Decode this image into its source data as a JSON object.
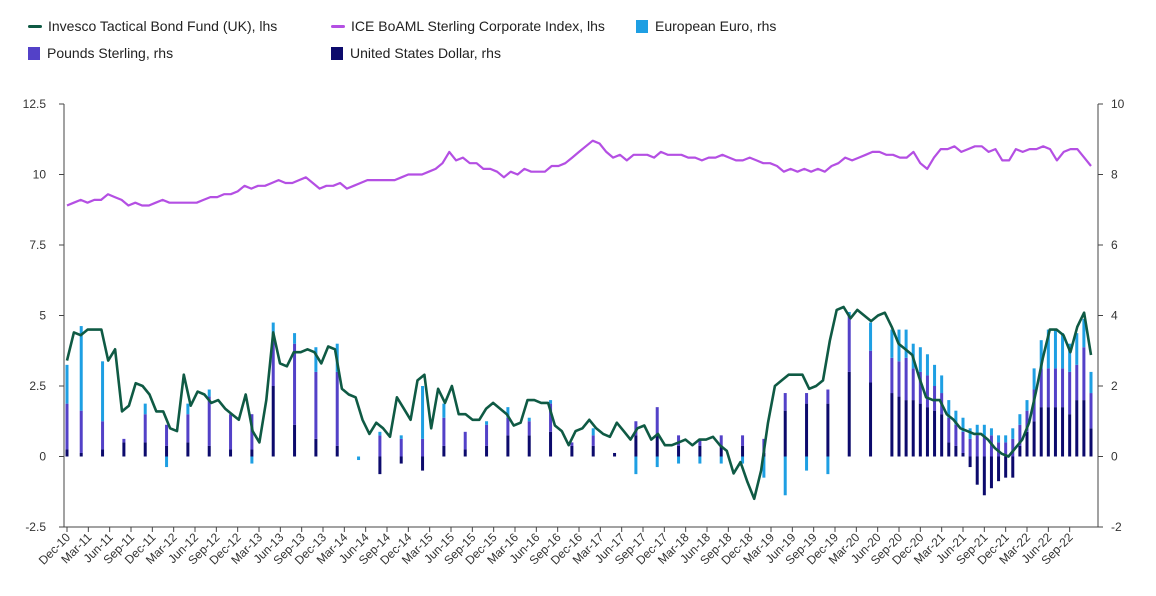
{
  "chart_data": {
    "type": "bar+line",
    "legend": [
      {
        "name": "Invesco Tactical Bond Fund (UK), lhs",
        "kind": "line",
        "color": "#0f5a44"
      },
      {
        "name": "ICE BoAML Sterling Corporate Index, lhs",
        "kind": "line",
        "color": "#b44fe3"
      },
      {
        "name": "European Euro, rhs",
        "kind": "bar",
        "color": "#1e9fe3"
      },
      {
        "name": "Pounds Sterling, rhs",
        "kind": "bar",
        "color": "#5341c8"
      },
      {
        "name": "United States Dollar, rhs",
        "kind": "bar",
        "color": "#0c0a6c"
      }
    ],
    "left_axis": {
      "min": -2.5,
      "max": 12.5,
      "ticks": [
        "-2.5",
        "0",
        "2.5",
        "5",
        "7.5",
        "10",
        "12.5"
      ]
    },
    "right_axis": {
      "min": -2,
      "max": 10,
      "ticks": [
        "-2",
        "0",
        "2",
        "4",
        "6",
        "8",
        "10"
      ]
    },
    "x_tick_labels": [
      "Dec-10",
      "Mar-11",
      "Jun-11",
      "Sep-11",
      "Dec-11",
      "Mar-12",
      "Jun-12",
      "Sep-12",
      "Dec-12",
      "Mar-13",
      "Jun-13",
      "Sep-13",
      "Dec-13",
      "Mar-14",
      "Jun-14",
      "Sep-14",
      "Dec-14",
      "Mar-15",
      "Jun-15",
      "Sep-15",
      "Dec-15",
      "Mar-16",
      "Jun-16",
      "Sep-16",
      "Dec-16",
      "Mar-17",
      "Jun-17",
      "Sep-17",
      "Dec-17",
      "Mar-18",
      "Jun-18",
      "Sep-18",
      "Dec-18",
      "Mar-19",
      "Jun-19",
      "Sep-19",
      "Dec-19",
      "Mar-20",
      "Jun-20",
      "Sep-20",
      "Dec-20",
      "Mar-21",
      "Jun-21",
      "Sep-21",
      "Dec-21",
      "Mar-22",
      "Jun-22",
      "Sep-22"
    ],
    "fund_series": {
      "name": "Invesco Tactical Bond Fund (UK), lhs",
      "values": [
        3.4,
        4.4,
        4.3,
        4.5,
        4.5,
        4.5,
        3.4,
        3.8,
        1.6,
        1.8,
        2.6,
        2.5,
        2.2,
        1.6,
        1.6,
        1.0,
        0.9,
        2.9,
        1.8,
        2.3,
        2.2,
        1.9,
        2.0,
        1.7,
        1.5,
        1.3,
        2.2,
        0.9,
        0.5,
        2.0,
        4.4,
        3.3,
        3.2,
        3.7,
        3.7,
        3.8,
        3.7,
        3.3,
        3.9,
        3.8,
        2.4,
        2.2,
        2.1,
        1.3,
        0.8,
        1.2,
        1.0,
        0.7,
        2.1,
        1.7,
        1.3,
        2.7,
        2.9,
        1.0,
        2.4,
        1.9,
        2.5,
        1.5,
        1.5,
        1.3,
        1.3,
        1.7,
        1.9,
        1.7,
        1.5,
        1.1,
        1.2,
        2.0,
        2.0,
        1.9,
        1.9,
        1.1,
        0.9,
        0.4,
        0.9,
        1.0,
        1.3,
        1.0,
        0.8,
        0.7,
        1.2,
        0.9,
        0.6,
        1.0,
        1.1,
        0.6,
        0.8,
        0.4,
        0.4,
        0.5,
        0.6,
        0.4,
        0.6,
        0.6,
        0.7,
        0.4,
        0.2,
        -0.6,
        -0.2,
        -0.9,
        -1.5,
        -0.5,
        1.2,
        2.5,
        2.7,
        2.9,
        2.9,
        2.9,
        2.4,
        2.5,
        2.7,
        4.1,
        5.2,
        5.3,
        4.9,
        5.2,
        5.0,
        4.8,
        5.0,
        5.1,
        4.6,
        4.0,
        3.8,
        3.6,
        2.8,
        2.1,
        2.0,
        2.0,
        1.5,
        1.3,
        1.0,
        0.9,
        0.8,
        0.8,
        0.6,
        0.3,
        0.1,
        0.0,
        0.3,
        0.6,
        1.2,
        2.3,
        3.5,
        4.5,
        4.5,
        4.3,
        3.7,
        4.6,
        5.1,
        3.6
      ]
    },
    "index_series": {
      "name": "ICE BoAML Sterling Corporate Index, lhs",
      "values": [
        8.9,
        9.0,
        9.1,
        9.0,
        9.1,
        9.1,
        9.3,
        9.2,
        9.1,
        8.9,
        9.0,
        8.9,
        8.9,
        9.0,
        9.1,
        9.0,
        9.0,
        9.0,
        9.0,
        9.0,
        9.1,
        9.2,
        9.2,
        9.3,
        9.3,
        9.4,
        9.6,
        9.5,
        9.6,
        9.6,
        9.7,
        9.8,
        9.7,
        9.7,
        9.8,
        9.9,
        9.7,
        9.5,
        9.6,
        9.6,
        9.7,
        9.5,
        9.6,
        9.7,
        9.8,
        9.8,
        9.8,
        9.8,
        9.8,
        9.9,
        10.0,
        10.0,
        10.0,
        10.1,
        10.2,
        10.4,
        10.8,
        10.5,
        10.6,
        10.4,
        10.4,
        10.2,
        10.2,
        10.1,
        9.9,
        10.1,
        10.0,
        10.2,
        10.1,
        10.1,
        10.1,
        10.3,
        10.3,
        10.4,
        10.6,
        10.8,
        11.0,
        11.2,
        11.1,
        10.8,
        10.6,
        10.7,
        10.5,
        10.7,
        10.7,
        10.7,
        10.6,
        10.8,
        10.7,
        10.7,
        10.7,
        10.6,
        10.6,
        10.5,
        10.6,
        10.6,
        10.7,
        10.6,
        10.5,
        10.5,
        10.6,
        10.5,
        10.4,
        10.4,
        10.3,
        10.1,
        10.2,
        10.1,
        10.2,
        10.1,
        10.2,
        10.1,
        10.3,
        10.4,
        10.6,
        10.5,
        10.6,
        10.7,
        10.8,
        10.8,
        10.7,
        10.7,
        10.6,
        10.6,
        10.8,
        10.4,
        10.2,
        10.6,
        10.9,
        10.9,
        11.0,
        10.8,
        10.9,
        11.0,
        11.0,
        10.8,
        10.9,
        10.5,
        10.5,
        10.9,
        10.8,
        10.9,
        10.9,
        11.0,
        10.9,
        10.5,
        10.8,
        10.9,
        10.9,
        10.6,
        10.3
      ]
    },
    "currency_bars": {
      "note": "Stacked bars (rhs axis); each bar = [United States Dollar, Pounds Sterling, European Euro]",
      "bars": [
        {
          "x": "Dec-10",
          "usd": 0.2,
          "gbp": 1.3,
          "eur": 1.1
        },
        {
          "x": "Feb-11",
          "usd": 0.1,
          "gbp": 1.2,
          "eur": 2.4
        },
        {
          "x": "May-11",
          "usd": 0.2,
          "gbp": 0.8,
          "eur": 1.7
        },
        {
          "x": "Aug-11",
          "usd": 0.4,
          "gbp": 0.1,
          "eur": 0.0
        },
        {
          "x": "Nov-11",
          "usd": 0.4,
          "gbp": 0.8,
          "eur": 0.3
        },
        {
          "x": "Feb-12",
          "usd": 0.3,
          "gbp": 0.6,
          "eur": -0.3
        },
        {
          "x": "May-12",
          "usd": 0.4,
          "gbp": 0.8,
          "eur": 0.3
        },
        {
          "x": "Aug-12",
          "usd": 0.3,
          "gbp": 1.4,
          "eur": 0.2
        },
        {
          "x": "Nov-12",
          "usd": 0.2,
          "gbp": 1.0,
          "eur": 0.0
        },
        {
          "x": "Feb-13",
          "usd": 0.2,
          "gbp": 1.0,
          "eur": -0.2
        },
        {
          "x": "May-13",
          "usd": 2.0,
          "gbp": 1.3,
          "eur": 0.5
        },
        {
          "x": "Aug-13",
          "usd": 0.9,
          "gbp": 2.3,
          "eur": 0.3
        },
        {
          "x": "Nov-13",
          "usd": 0.5,
          "gbp": 1.9,
          "eur": 0.7
        },
        {
          "x": "Feb-14",
          "usd": 0.3,
          "gbp": 2.1,
          "eur": 0.8
        },
        {
          "x": "May-14",
          "usd": 0.0,
          "gbp": 0.0,
          "eur": -0.1
        },
        {
          "x": "Aug-14",
          "usd": -0.5,
          "gbp": 0.6,
          "eur": 0.1
        },
        {
          "x": "Nov-14",
          "usd": -0.2,
          "gbp": 0.5,
          "eur": 0.1
        },
        {
          "x": "Feb-15",
          "usd": -0.4,
          "gbp": 0.5,
          "eur": 1.5
        },
        {
          "x": "May-15",
          "usd": 0.3,
          "gbp": 0.8,
          "eur": 0.4
        },
        {
          "x": "Aug-15",
          "usd": 0.2,
          "gbp": 0.5,
          "eur": 0.0
        },
        {
          "x": "Nov-15",
          "usd": 0.3,
          "gbp": 0.6,
          "eur": 0.1
        },
        {
          "x": "Feb-16",
          "usd": 0.6,
          "gbp": 0.5,
          "eur": 0.3
        },
        {
          "x": "May-16",
          "usd": 0.6,
          "gbp": 0.4,
          "eur": 0.1
        },
        {
          "x": "Aug-16",
          "usd": 0.7,
          "gbp": 0.8,
          "eur": 0.1
        },
        {
          "x": "Nov-16",
          "usd": 0.3,
          "gbp": 0.1,
          "eur": 0.0
        },
        {
          "x": "Feb-17",
          "usd": 0.3,
          "gbp": 0.3,
          "eur": 0.2
        },
        {
          "x": "May-17",
          "usd": 0.1,
          "gbp": 0.0,
          "eur": 0.0
        },
        {
          "x": "Aug-17",
          "usd": 0.6,
          "gbp": 0.4,
          "eur": -0.5
        },
        {
          "x": "Nov-17",
          "usd": 0.6,
          "gbp": 0.8,
          "eur": -0.3
        },
        {
          "x": "Feb-18",
          "usd": 0.3,
          "gbp": 0.3,
          "eur": -0.2
        },
        {
          "x": "May-18",
          "usd": 0.3,
          "gbp": 0.2,
          "eur": -0.2
        },
        {
          "x": "Aug-18",
          "usd": 0.3,
          "gbp": 0.3,
          "eur": -0.2
        },
        {
          "x": "Nov-18",
          "usd": 0.3,
          "gbp": 0.3,
          "eur": -0.2
        },
        {
          "x": "Feb-19",
          "usd": 0.1,
          "gbp": 0.4,
          "eur": -0.6
        },
        {
          "x": "May-19",
          "usd": 1.3,
          "gbp": 0.5,
          "eur": -1.1
        },
        {
          "x": "Aug-19",
          "usd": 1.5,
          "gbp": 0.3,
          "eur": -0.4
        },
        {
          "x": "Nov-19",
          "usd": 1.5,
          "gbp": 0.4,
          "eur": -0.5
        },
        {
          "x": "Feb-20",
          "usd": 2.4,
          "gbp": 1.6,
          "eur": 0.1
        },
        {
          "x": "May-20",
          "usd": 2.1,
          "gbp": 0.9,
          "eur": 0.8
        },
        {
          "x": "Aug-20",
          "usd": 1.8,
          "gbp": 1.0,
          "eur": 0.8
        },
        {
          "x": "Sep-20",
          "usd": 1.7,
          "gbp": 1.0,
          "eur": 0.9
        },
        {
          "x": "Oct-20",
          "usd": 1.6,
          "gbp": 1.2,
          "eur": 0.8
        },
        {
          "x": "Nov-20",
          "usd": 1.6,
          "gbp": 0.9,
          "eur": 0.7
        },
        {
          "x": "Dec-20",
          "usd": 1.5,
          "gbp": 0.9,
          "eur": 0.7
        },
        {
          "x": "Jan-21",
          "usd": 1.4,
          "gbp": 0.9,
          "eur": 0.6
        },
        {
          "x": "Feb-21",
          "usd": 1.3,
          "gbp": 0.7,
          "eur": 0.6
        },
        {
          "x": "Mar-21",
          "usd": 1.2,
          "gbp": 0.6,
          "eur": 0.5
        },
        {
          "x": "Apr-21",
          "usd": 0.4,
          "gbp": 0.7,
          "eur": 0.5
        },
        {
          "x": "May-21",
          "usd": 0.3,
          "gbp": 0.6,
          "eur": 0.4
        },
        {
          "x": "Jun-21",
          "usd": 0.1,
          "gbp": 0.6,
          "eur": 0.4
        },
        {
          "x": "Jul-21",
          "usd": -0.3,
          "gbp": 0.5,
          "eur": 0.3
        },
        {
          "x": "Aug-21",
          "usd": -0.8,
          "gbp": 0.6,
          "eur": 0.3
        },
        {
          "x": "Sep-21",
          "usd": -1.1,
          "gbp": 0.6,
          "eur": 0.3
        },
        {
          "x": "Oct-21",
          "usd": -0.9,
          "gbp": 0.6,
          "eur": 0.2
        },
        {
          "x": "Nov-21",
          "usd": -0.7,
          "gbp": 0.4,
          "eur": 0.2
        },
        {
          "x": "Dec-21",
          "usd": -0.6,
          "gbp": 0.4,
          "eur": 0.2
        },
        {
          "x": "Jan-22",
          "usd": -0.6,
          "gbp": 0.5,
          "eur": 0.3
        },
        {
          "x": "Feb-22",
          "usd": 0.3,
          "gbp": 0.6,
          "eur": 0.3
        },
        {
          "x": "Mar-22",
          "usd": 0.7,
          "gbp": 0.6,
          "eur": 0.3
        },
        {
          "x": "Apr-22",
          "usd": 1.0,
          "gbp": 0.9,
          "eur": 0.6
        },
        {
          "x": "May-22",
          "usd": 1.4,
          "gbp": 1.1,
          "eur": 0.8
        },
        {
          "x": "Jun-22",
          "usd": 1.4,
          "gbp": 1.1,
          "eur": 1.1
        },
        {
          "x": "Jul-22",
          "usd": 1.4,
          "gbp": 1.1,
          "eur": 1.1
        },
        {
          "x": "Aug-22",
          "usd": 1.4,
          "gbp": 1.1,
          "eur": 1.0
        },
        {
          "x": "Sep-22",
          "usd": 1.2,
          "gbp": 1.2,
          "eur": 0.8
        },
        {
          "x": "Oct-22",
          "usd": 1.6,
          "gbp": 1.0,
          "eur": 0.9
        },
        {
          "x": "Nov-22",
          "usd": 1.6,
          "gbp": 1.5,
          "eur": 0.8
        },
        {
          "x": "Dec-22",
          "usd": 0.8,
          "gbp": 1.0,
          "eur": 0.6
        }
      ]
    }
  }
}
